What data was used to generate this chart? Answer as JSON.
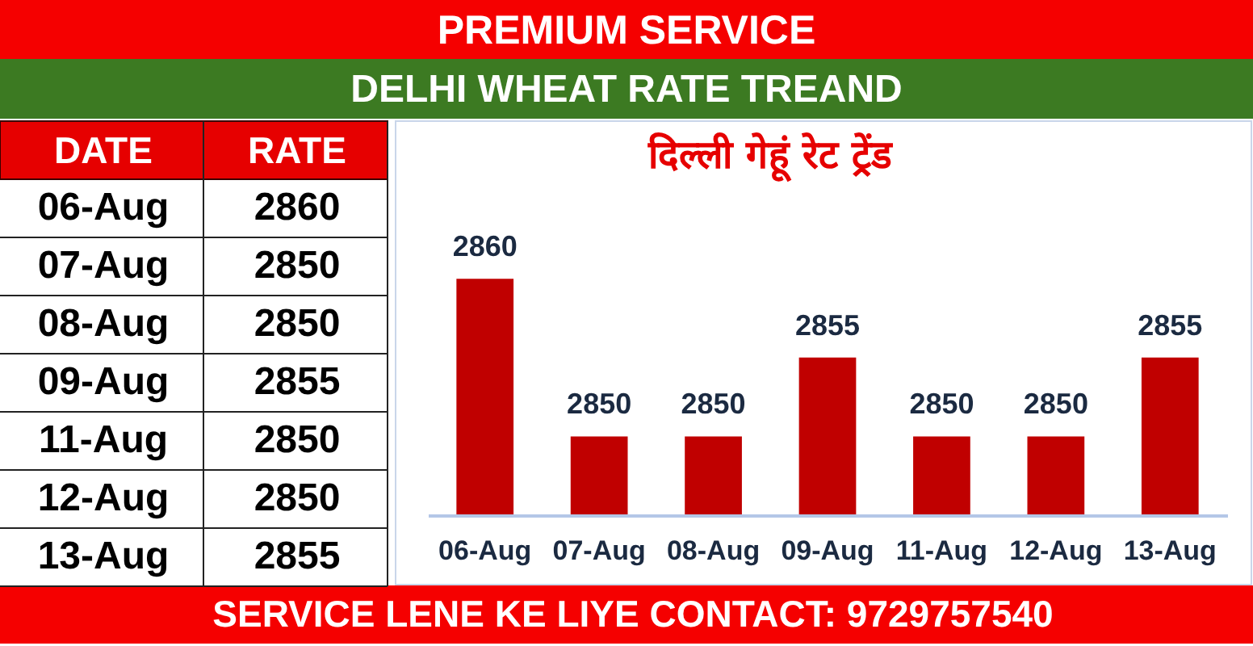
{
  "chart_data": [
    {
      "type": "other",
      "categories": [
        "06-Aug",
        "07-Aug",
        "08-Aug",
        "09-Aug",
        "11-Aug",
        "12-Aug",
        "13-Aug"
      ],
      "values": [
        2860,
        2850,
        2850,
        2855,
        2850,
        2850,
        2855
      ],
      "data_labels": true,
      "annotations": [
        "DATE",
        "RATE"
      ]
    },
    {
      "type": "bar",
      "title": "DELHI WHEAT RATE TREAND",
      "subtitle": "दिल्ली गेहूं रेट ट्रेंड",
      "categories": [
        "06-Aug",
        "07-Aug",
        "08-Aug",
        "09-Aug",
        "11-Aug",
        "12-Aug",
        "13-Aug"
      ],
      "values": [
        2860,
        2850,
        2850,
        2855,
        2850,
        2850,
        2855
      ],
      "color": "#c00000",
      "ylim": [
        2845,
        2870
      ],
      "data_labels": true,
      "tick_labels": "x",
      "annotations": [
        "PREMIUM SERVICE",
        "SERVICE LENE KE LIYE CONTACT: 9729757540"
      ]
    }
  ]
}
